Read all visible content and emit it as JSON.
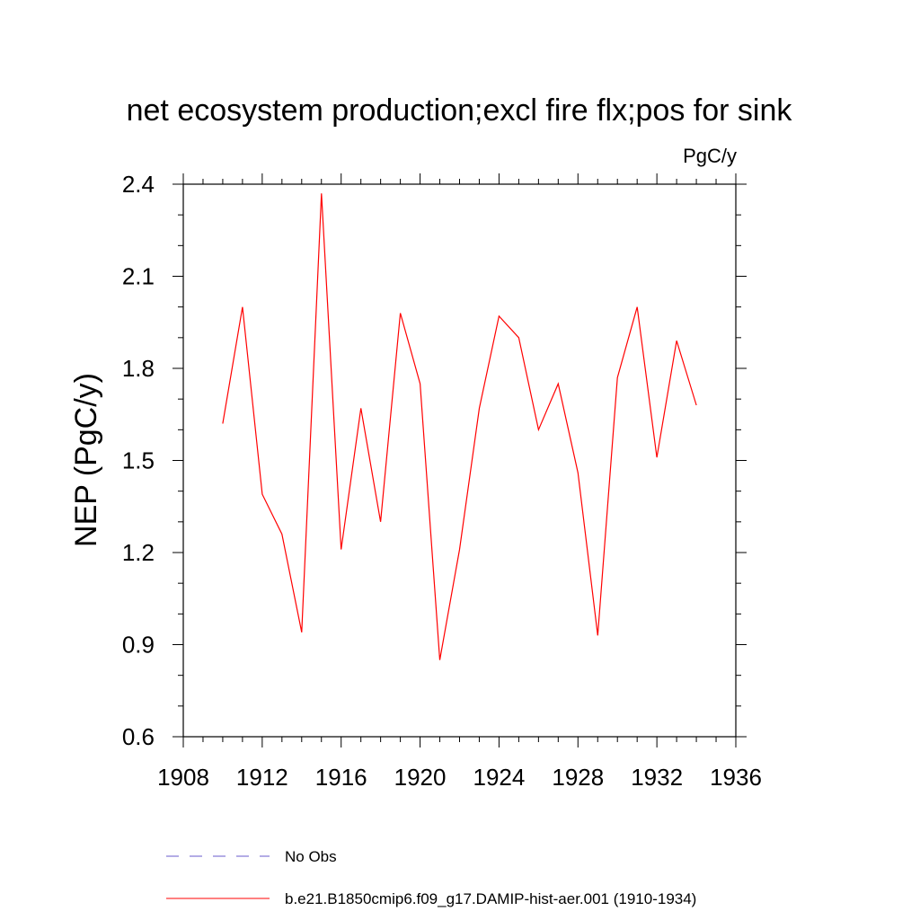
{
  "chart_data": {
    "type": "line",
    "title": "net ecosystem production;excl fire flx;pos for sink",
    "units": "PgC/y",
    "xlabel": "",
    "ylabel": "NEP  (PgC/y)",
    "xlim": [
      1908,
      1936
    ],
    "ylim": [
      0.6,
      2.4
    ],
    "xticks": [
      1908,
      1912,
      1916,
      1920,
      1924,
      1928,
      1932,
      1936
    ],
    "xtick_labels": [
      "1908",
      "1912",
      "1916",
      "1920",
      "1924",
      "1928",
      "1932",
      "1936"
    ],
    "yticks": [
      0.6,
      0.9,
      1.2,
      1.5,
      1.8,
      2.1,
      2.4
    ],
    "ytick_labels": [
      "0.6",
      "0.9",
      "1.2",
      "1.5",
      "1.8",
      "2.1",
      "2.4"
    ],
    "grid": false,
    "legend_position": "bottom",
    "series": [
      {
        "name": "No Obs",
        "color": "#6a5acd",
        "dash": "dashed",
        "x": [],
        "y": []
      },
      {
        "name": "b.e21.B1850cmip6.f09_g17.DAMIP-hist-aer.001 (1910-1934)",
        "color": "#ff0000",
        "dash": "solid",
        "x": [
          1910,
          1911,
          1912,
          1913,
          1914,
          1915,
          1916,
          1917,
          1918,
          1919,
          1920,
          1921,
          1922,
          1923,
          1924,
          1925,
          1926,
          1927,
          1928,
          1929,
          1930,
          1931,
          1932,
          1933,
          1934
        ],
        "y": [
          1.62,
          2.0,
          1.39,
          1.26,
          0.94,
          2.37,
          1.21,
          1.67,
          1.3,
          1.98,
          1.75,
          0.85,
          1.21,
          1.67,
          1.97,
          1.9,
          1.6,
          1.75,
          1.46,
          0.93,
          1.77,
          2.0,
          1.51,
          1.89,
          1.68
        ]
      }
    ]
  }
}
